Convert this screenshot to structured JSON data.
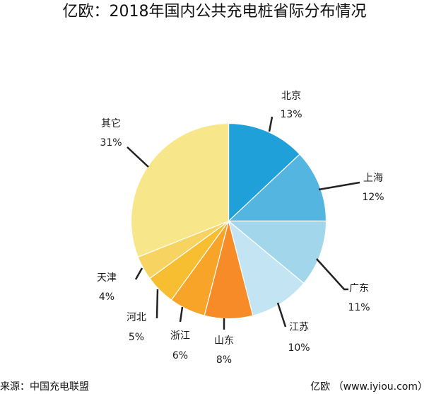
{
  "title": "亿欧：2018年国内公共充电桩省际分布情况",
  "chart_data": {
    "type": "pie",
    "categories": [
      "北京",
      "上海",
      "广东",
      "江苏",
      "山东",
      "浙江",
      "河北",
      "天津",
      "其它"
    ],
    "values": [
      13,
      12,
      11,
      10,
      8,
      6,
      5,
      4,
      31
    ],
    "value_labels": [
      "13%",
      "12%",
      "11%",
      "10%",
      "8%",
      "6%",
      "5%",
      "4%",
      "31%"
    ],
    "colors": [
      "#1fa0d8",
      "#55b5e1",
      "#a2d6ea",
      "#c3e4f3",
      "#f68b28",
      "#f7a428",
      "#f6be30",
      "#f7d462",
      "#f8e68a"
    ],
    "start_angle": "12 o'clock",
    "direction": "clockwise",
    "legend": "none"
  },
  "footer": {
    "source": "来源：中国充电联盟",
    "credit": "亿欧 （www.iyiou.com）"
  }
}
